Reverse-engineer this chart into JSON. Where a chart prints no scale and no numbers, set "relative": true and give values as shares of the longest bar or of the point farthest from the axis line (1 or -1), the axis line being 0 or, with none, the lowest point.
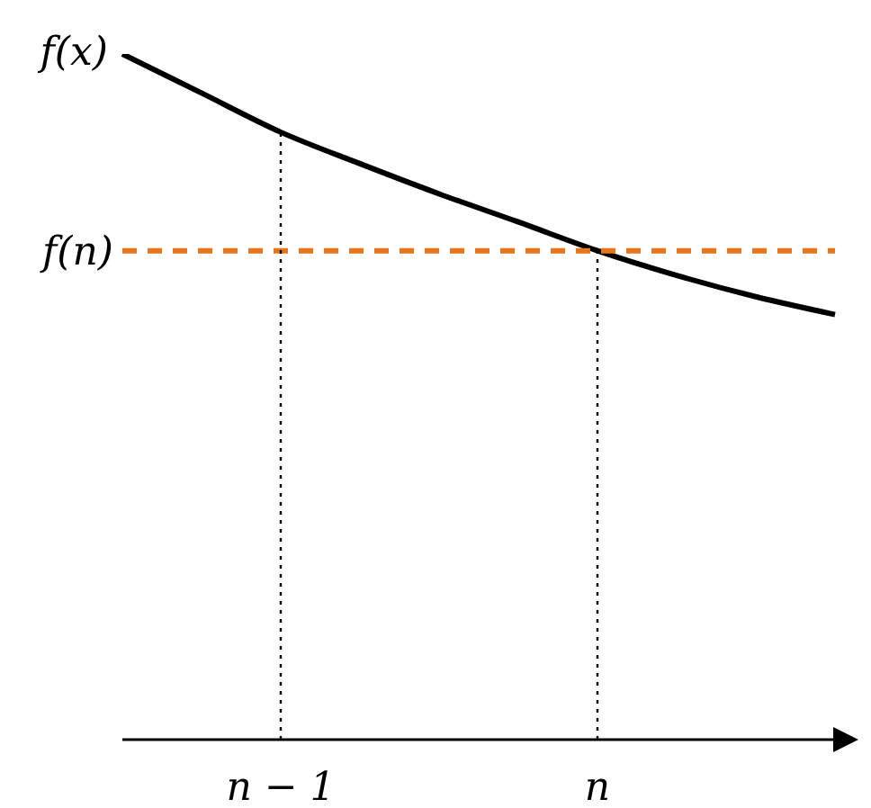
{
  "chart_data": {
    "type": "line",
    "relative": true,
    "categories": [
      null,
      null,
      "n − 1",
      null,
      null,
      null,
      "n",
      null,
      null,
      null
    ],
    "series": [
      {
        "name": "f(x)",
        "color": "#000000",
        "values": [
          1,
          0.943,
          0.886,
          0.84,
          0.796,
          0.755,
          0.713,
          0.677,
          0.646,
          0.62
        ]
      }
    ],
    "ref_lines": [
      {
        "axis": "y",
        "value": 0.713,
        "label": "f(n)",
        "color": "#e8751a",
        "line_style": "dashed"
      },
      {
        "axis": "x",
        "value": "n − 1",
        "color": "#000000",
        "line_style": "dotted"
      },
      {
        "axis": "x",
        "value": "n",
        "color": "#000000",
        "line_style": "dotted"
      }
    ],
    "marker": "none"
  }
}
